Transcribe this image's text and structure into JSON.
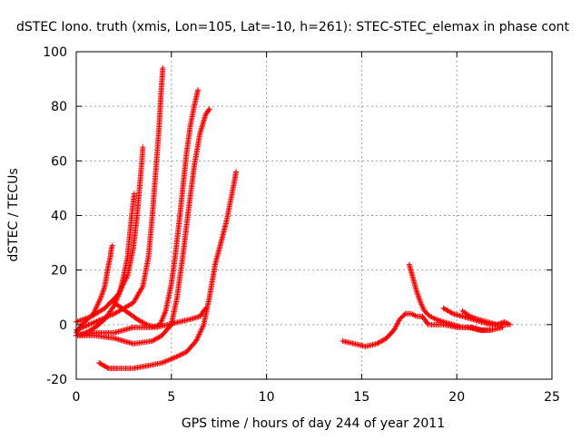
{
  "chart_data": {
    "type": "scatter",
    "title": "dSTEC Iono. truth (xmis, Lon=105, Lat=-10, h=261): STEC-STEC_elemax in phase cont",
    "xlabel": "GPS time / hours of day 244 of year 2011",
    "ylabel": "dSTEC  / TECUs",
    "xlim": [
      0,
      25
    ],
    "ylim": [
      -20,
      100
    ],
    "xticks": [
      0,
      5,
      10,
      15,
      20,
      25
    ],
    "yticks": [
      -20,
      0,
      20,
      40,
      60,
      80,
      100
    ],
    "xtick_labels": [
      "0",
      "5",
      "10",
      "15",
      "20",
      "25"
    ],
    "ytick_labels": [
      "-20",
      "0",
      "20",
      "40",
      "60",
      "80",
      "100"
    ],
    "grid": true,
    "marker": "+",
    "color": "#ff0000",
    "series": [
      {
        "x": [
          0.0,
          0.3,
          0.6,
          0.9,
          1.1,
          1.3,
          1.5,
          1.6,
          1.7,
          1.8,
          1.85,
          1.9
        ],
        "y": [
          -3,
          0,
          2,
          4,
          7,
          10,
          14,
          18,
          22,
          25,
          28,
          29
        ]
      },
      {
        "x": [
          0.0,
          0.5,
          1.0,
          1.5,
          2.0,
          2.3,
          2.5,
          2.7,
          2.8,
          2.9,
          3.0,
          3.05
        ],
        "y": [
          -4,
          -3,
          -1,
          2,
          7,
          12,
          18,
          25,
          32,
          39,
          45,
          48
        ]
      },
      {
        "x": [
          0.0,
          0.8,
          1.5,
          2.2,
          2.7,
          3.0,
          3.2,
          3.35,
          3.45,
          3.5
        ],
        "y": [
          1,
          3,
          6,
          11,
          18,
          28,
          40,
          52,
          60,
          65
        ]
      },
      {
        "x": [
          0.0,
          1.0,
          2.0,
          3.0,
          3.5,
          3.8,
          4.0,
          4.2,
          4.35,
          4.45,
          4.55
        ],
        "y": [
          -2,
          1,
          4,
          8,
          14,
          25,
          40,
          58,
          72,
          84,
          94
        ]
      },
      {
        "x": [
          0.0,
          1.0,
          2.0,
          3.0,
          4.0,
          4.4,
          4.7,
          5.0,
          5.2,
          5.4,
          5.6,
          5.8,
          6.0,
          6.2,
          6.4
        ],
        "y": [
          -4,
          -3,
          -3,
          -1,
          -1,
          0,
          5,
          15,
          25,
          37,
          50,
          63,
          73,
          80,
          86
        ]
      },
      {
        "x": [
          0.0,
          1.0,
          2.0,
          3.0,
          4.0,
          4.5,
          5.0,
          5.3,
          5.6,
          5.9,
          6.2,
          6.5,
          6.8,
          7.0
        ],
        "y": [
          -4,
          -4,
          -5,
          -7,
          -6,
          -4,
          0,
          10,
          25,
          42,
          58,
          70,
          77,
          79
        ]
      },
      {
        "x": [
          1.2,
          1.7,
          2.2,
          3.0,
          3.8,
          4.5,
          5.2,
          5.8,
          6.3,
          6.7,
          7.0,
          7.3,
          7.6,
          7.9,
          8.1,
          8.3,
          8.4
        ],
        "y": [
          -14,
          -16,
          -16,
          -16,
          -15,
          -14,
          -12,
          -10,
          -6,
          0,
          10,
          22,
          30,
          38,
          45,
          52,
          56
        ]
      },
      {
        "x": [
          2.0,
          2.6,
          3.2,
          3.7,
          4.2,
          4.8,
          5.4,
          6.0,
          6.5,
          6.8
        ],
        "y": [
          8,
          5,
          2,
          0,
          -1,
          0,
          1,
          2,
          3,
          6
        ]
      },
      {
        "x": [
          14.0,
          14.6,
          15.2,
          15.8,
          16.3,
          16.7,
          17.0,
          17.3,
          17.6,
          17.9,
          18.2,
          18.5
        ],
        "y": [
          -6,
          -7,
          -8,
          -7,
          -5,
          -2,
          2,
          4,
          4,
          3,
          3,
          0
        ]
      },
      {
        "x": [
          17.5,
          17.7,
          17.9,
          18.1,
          18.3,
          18.6,
          18.9,
          19.3,
          19.8,
          20.3,
          20.8,
          21.3,
          21.8
        ],
        "y": [
          22,
          17,
          12,
          8,
          5,
          3,
          2,
          1,
          0,
          -1,
          -1,
          -2,
          -2
        ]
      },
      {
        "x": [
          19.3,
          19.8,
          20.3,
          20.8,
          21.3,
          21.8,
          22.3,
          22.7
        ],
        "y": [
          6,
          4,
          3,
          2,
          1,
          0,
          0,
          0
        ]
      },
      {
        "x": [
          20.3,
          20.7,
          21.1,
          21.6,
          22.1,
          22.5,
          22.8
        ],
        "y": [
          5,
          3,
          2,
          1,
          0,
          1,
          0
        ]
      },
      {
        "x": [
          18.6,
          19.3,
          20.0,
          20.6,
          21.2,
          21.8,
          22.4
        ],
        "y": [
          0,
          0,
          -1,
          -1,
          -2,
          -2,
          -1
        ]
      }
    ]
  }
}
